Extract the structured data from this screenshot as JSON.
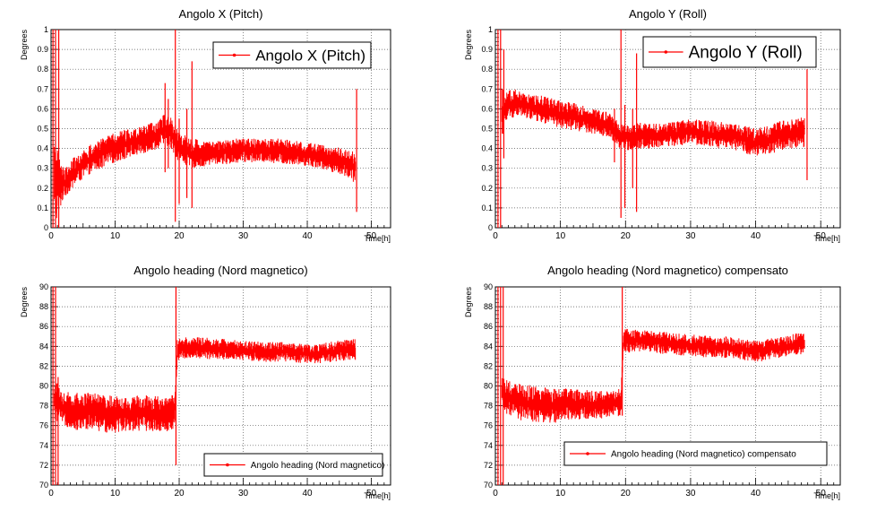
{
  "chart_data": [
    {
      "type": "line",
      "title": "Angolo X (Pitch)",
      "xlabel": "Time[h]",
      "ylabel": "Degrees",
      "xlim": [
        0,
        53
      ],
      "ylim": [
        0,
        1
      ],
      "xticks": [
        0,
        10,
        20,
        30,
        40,
        50
      ],
      "yticks": [
        0,
        0.1,
        0.2,
        0.3,
        0.4,
        0.5,
        0.6,
        0.7,
        0.8,
        0.9,
        1
      ],
      "ytick_labels": [
        "0",
        "0.1",
        "0.2",
        "0.3",
        "0.4",
        "0.5",
        "0.6",
        "0.7",
        "0.8",
        "0.9",
        "1"
      ],
      "grid": true,
      "legend": "top-right",
      "color": "#ff0000",
      "series": [
        {
          "name": "Angolo X (Pitch)",
          "x": [
            0.5,
            2,
            4,
            6,
            8,
            10,
            12,
            14,
            16,
            18,
            19,
            20,
            22,
            24,
            26,
            28,
            30,
            32,
            34,
            36,
            38,
            40,
            42,
            44,
            46,
            47.5
          ],
          "y_min": [
            0.0,
            0.15,
            0.22,
            0.27,
            0.3,
            0.33,
            0.35,
            0.37,
            0.39,
            0.42,
            0.38,
            0.33,
            0.3,
            0.31,
            0.32,
            0.32,
            0.33,
            0.33,
            0.33,
            0.32,
            0.32,
            0.31,
            0.3,
            0.28,
            0.26,
            0.22
          ],
          "y_max": [
            0.45,
            0.3,
            0.37,
            0.42,
            0.45,
            0.48,
            0.5,
            0.52,
            0.54,
            0.58,
            0.55,
            0.48,
            0.45,
            0.44,
            0.44,
            0.45,
            0.45,
            0.45,
            0.45,
            0.45,
            0.44,
            0.43,
            0.42,
            0.41,
            0.4,
            0.38
          ]
        }
      ],
      "spikes": [
        {
          "x": 0.3,
          "y": [
            0,
            1
          ]
        },
        {
          "x": 0.7,
          "y": [
            0,
            1
          ]
        },
        {
          "x": 1.2,
          "y": [
            0,
            1
          ]
        },
        {
          "x": 17.8,
          "y": [
            0.28,
            0.73
          ]
        },
        {
          "x": 18.3,
          "y": [
            0.3,
            0.65
          ]
        },
        {
          "x": 19.4,
          "y": [
            0.03,
            1
          ]
        },
        {
          "x": 20.0,
          "y": [
            0.12,
            0.55
          ]
        },
        {
          "x": 21.2,
          "y": [
            0.15,
            0.6
          ]
        },
        {
          "x": 22.0,
          "y": [
            0.1,
            0.84
          ]
        },
        {
          "x": 47.7,
          "y": [
            0.08,
            0.7
          ]
        }
      ]
    },
    {
      "type": "line",
      "title": "Angolo Y (Roll)",
      "xlabel": "Time[h]",
      "ylabel": "Degrees",
      "xlim": [
        0,
        53
      ],
      "ylim": [
        0,
        1
      ],
      "xticks": [
        0,
        10,
        20,
        30,
        40,
        50
      ],
      "yticks": [
        0,
        0.1,
        0.2,
        0.3,
        0.4,
        0.5,
        0.6,
        0.7,
        0.8,
        0.9,
        1
      ],
      "ytick_labels": [
        "0",
        "0.1",
        "0.2",
        "0.3",
        "0.4",
        "0.5",
        "0.6",
        "0.7",
        "0.8",
        "0.9",
        "1"
      ],
      "grid": true,
      "legend": "top-right",
      "color": "#ff0000",
      "series": [
        {
          "name": "Angolo Y (Roll)",
          "x": [
            1,
            2,
            4,
            6,
            8,
            10,
            12,
            14,
            16,
            18,
            19,
            20,
            22,
            24,
            26,
            28,
            30,
            32,
            34,
            36,
            38,
            40,
            42,
            44,
            46,
            47.5
          ],
          "y_min": [
            0.45,
            0.55,
            0.56,
            0.54,
            0.52,
            0.5,
            0.49,
            0.48,
            0.47,
            0.44,
            0.4,
            0.39,
            0.4,
            0.4,
            0.41,
            0.41,
            0.42,
            0.41,
            0.4,
            0.4,
            0.38,
            0.36,
            0.37,
            0.39,
            0.4,
            0.4
          ],
          "y_max": [
            0.7,
            0.71,
            0.69,
            0.68,
            0.66,
            0.64,
            0.63,
            0.61,
            0.6,
            0.57,
            0.53,
            0.52,
            0.53,
            0.53,
            0.53,
            0.54,
            0.55,
            0.54,
            0.54,
            0.53,
            0.52,
            0.5,
            0.52,
            0.54,
            0.55,
            0.56
          ]
        }
      ],
      "spikes": [
        {
          "x": 0.4,
          "y": [
            0,
            1
          ]
        },
        {
          "x": 0.8,
          "y": [
            0,
            1
          ]
        },
        {
          "x": 1.3,
          "y": [
            0.35,
            0.9
          ]
        },
        {
          "x": 18.3,
          "y": [
            0.33,
            0.6
          ]
        },
        {
          "x": 19.3,
          "y": [
            0.05,
            1
          ]
        },
        {
          "x": 19.9,
          "y": [
            0.1,
            0.62
          ]
        },
        {
          "x": 21.1,
          "y": [
            0.2,
            0.6
          ]
        },
        {
          "x": 21.7,
          "y": [
            0.08,
            0.88
          ]
        },
        {
          "x": 47.9,
          "y": [
            0.24,
            0.8
          ]
        }
      ]
    },
    {
      "type": "line",
      "title": "Angolo heading (Nord magnetico)",
      "xlabel": "Time[h]",
      "ylabel": "Degrees",
      "xlim": [
        0,
        53
      ],
      "ylim": [
        70,
        90
      ],
      "xticks": [
        0,
        10,
        20,
        30,
        40,
        50
      ],
      "yticks": [
        70,
        72,
        74,
        76,
        78,
        80,
        82,
        84,
        86,
        88,
        90
      ],
      "ytick_labels": [
        "70",
        "72",
        "74",
        "76",
        "78",
        "80",
        "82",
        "84",
        "86",
        "88",
        "90"
      ],
      "grid": true,
      "legend": "bottom-right",
      "color": "#ff0000",
      "series": [
        {
          "name": "Angolo heading (Nord magnetico)",
          "x": [
            0.5,
            2,
            4,
            6,
            8,
            10,
            12,
            14,
            16,
            18,
            19.3,
            19.7,
            22,
            24,
            26,
            28,
            30,
            32,
            34,
            36,
            38,
            40,
            42,
            44,
            46,
            47.5
          ],
          "y_min": [
            76.5,
            76,
            75.5,
            75.5,
            75.3,
            75.3,
            75.5,
            75.4,
            75.4,
            75.3,
            75.5,
            82.5,
            82.8,
            82.7,
            82.6,
            82.7,
            82.6,
            82.5,
            82.4,
            82.5,
            82.4,
            82.2,
            82.3,
            82.4,
            82.6,
            82.6
          ],
          "y_max": [
            80.7,
            79.5,
            79.3,
            79.3,
            79.2,
            79,
            79,
            79.1,
            79,
            78.9,
            79.2,
            84.8,
            85,
            84.9,
            84.8,
            84.7,
            84.6,
            84.5,
            84.4,
            84.5,
            84.3,
            84.2,
            84.3,
            84.5,
            84.7,
            84.8
          ]
        }
      ],
      "spikes": [
        {
          "x": 0.3,
          "y": [
            70,
            90
          ]
        },
        {
          "x": 0.7,
          "y": [
            70,
            90
          ]
        },
        {
          "x": 1.1,
          "y": [
            70,
            80.9
          ]
        },
        {
          "x": 19.5,
          "y": [
            72,
            90
          ]
        }
      ]
    },
    {
      "type": "line",
      "title": "Angolo heading (Nord magnetico) compensato",
      "xlabel": "Time[h]",
      "ylabel": "Degrees",
      "xlim": [
        0,
        53
      ],
      "ylim": [
        70,
        90
      ],
      "xticks": [
        0,
        10,
        20,
        30,
        40,
        50
      ],
      "yticks": [
        70,
        72,
        74,
        76,
        78,
        80,
        82,
        84,
        86,
        88,
        90
      ],
      "ytick_labels": [
        "70",
        "72",
        "74",
        "76",
        "78",
        "80",
        "82",
        "84",
        "86",
        "88",
        "90"
      ],
      "grid": true,
      "legend": "bottom-right",
      "color": "#ff0000",
      "series": [
        {
          "name": "Angolo heading (Nord magnetico) compensato",
          "x": [
            1,
            2,
            4,
            6,
            8,
            10,
            12,
            14,
            16,
            18,
            19.3,
            19.7,
            22,
            24,
            26,
            28,
            30,
            32,
            34,
            36,
            38,
            40,
            42,
            44,
            46,
            47.5
          ],
          "y_min": [
            77.5,
            77,
            76.5,
            76.3,
            76.2,
            76.3,
            76.5,
            76.6,
            76.7,
            76.8,
            77,
            83.2,
            83.5,
            83.4,
            83.2,
            83.1,
            83,
            82.9,
            82.8,
            82.8,
            82.6,
            82.4,
            82.6,
            82.9,
            83.1,
            83.2
          ],
          "y_max": [
            81,
            80.5,
            80.2,
            80,
            79.8,
            79.8,
            79.7,
            79.6,
            79.5,
            79.5,
            79.8,
            85.8,
            85.8,
            85.6,
            85.5,
            85.3,
            85.2,
            85.1,
            85,
            85,
            84.8,
            84.6,
            84.8,
            85,
            85.3,
            85.3
          ]
        }
      ],
      "spikes": [
        {
          "x": 0.4,
          "y": [
            70,
            90
          ]
        },
        {
          "x": 0.8,
          "y": [
            70,
            90
          ]
        },
        {
          "x": 1.2,
          "y": [
            70,
            90
          ]
        },
        {
          "x": 19.5,
          "y": [
            77,
            90
          ]
        }
      ]
    }
  ]
}
